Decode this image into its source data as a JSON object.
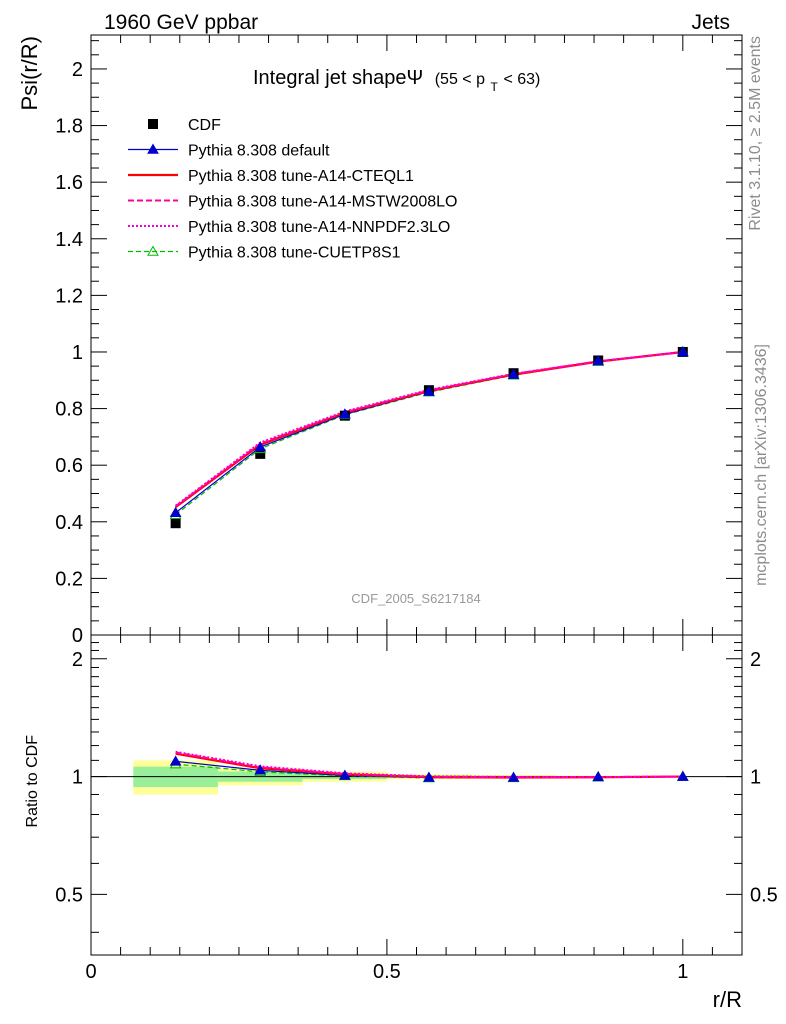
{
  "header": {
    "left": "1960 GeV ppbar",
    "right": "Jets"
  },
  "side_text": {
    "top": "Rivet 3.1.10, ≥ 2.5M events",
    "bottom": "mcplots.cern.ch [arXiv:1306.3436]"
  },
  "chart_data": {
    "type": "line",
    "title": "Integral jet shapeΨ",
    "title_range": {
      "pre": "(55 < p",
      "sub": "T",
      "post": " < 63)"
    },
    "watermark": "CDF_2005_S6217184",
    "xlabel": "r/R",
    "ylabel": "Psi(r/R)",
    "ratio_ylabel": "Ratio to CDF",
    "xlim": [
      0,
      1.1
    ],
    "ylim": [
      0,
      2.12
    ],
    "ratio_ylim": [
      0.35,
      2.3
    ],
    "main_yticks": [
      "0",
      "0.2",
      "0.4",
      "0.6",
      "0.8",
      "1",
      "1.2",
      "1.4",
      "1.6",
      "1.8",
      "2"
    ],
    "ratio_yticks": [
      "0.5",
      "1",
      "2"
    ],
    "xticks": [
      "0",
      "0.5",
      "1"
    ],
    "x": [
      0.143,
      0.286,
      0.429,
      0.571,
      0.714,
      0.857,
      1.0
    ],
    "data": {
      "name": "CDF",
      "values": [
        0.395,
        0.64,
        0.775,
        0.865,
        0.925,
        0.97,
        1.0
      ],
      "band_inner": [
        0.06,
        0.03,
        0.015,
        0.008,
        0.005,
        0.003,
        0.001
      ],
      "band_outer": [
        0.1,
        0.05,
        0.03,
        0.015,
        0.01,
        0.006,
        0.002
      ]
    },
    "series": [
      {
        "name": "Pythia 8.308 default",
        "color": "#0000cc",
        "style": "solid",
        "marker": "triangle-filled",
        "values": [
          0.432,
          0.664,
          0.78,
          0.86,
          0.92,
          0.968,
          1.0
        ]
      },
      {
        "name": "Pythia 8.308 tune-A14-CTEQL1",
        "color": "#ff0000",
        "style": "solid-thick",
        "marker": "none",
        "values": [
          0.452,
          0.672,
          0.785,
          0.862,
          0.92,
          0.966,
          1.0
        ]
      },
      {
        "name": "Pythia 8.308 tune-A14-MSTW2008LO",
        "color": "#ff0099",
        "style": "dashed",
        "marker": "none",
        "values": [
          0.455,
          0.676,
          0.787,
          0.864,
          0.922,
          0.967,
          1.0
        ]
      },
      {
        "name": "Pythia 8.308 tune-A14-NNPDF2.3LO",
        "color": "#ff00cc",
        "style": "dotted",
        "marker": "none",
        "values": [
          0.457,
          0.68,
          0.79,
          0.866,
          0.923,
          0.967,
          1.0
        ]
      },
      {
        "name": "Pythia 8.308 tune-CUETP8S1",
        "color": "#00bb00",
        "style": "dashed-thin",
        "marker": "triangle-open",
        "values": [
          0.425,
          0.658,
          0.778,
          0.858,
          0.918,
          0.966,
          1.0
        ]
      }
    ]
  }
}
